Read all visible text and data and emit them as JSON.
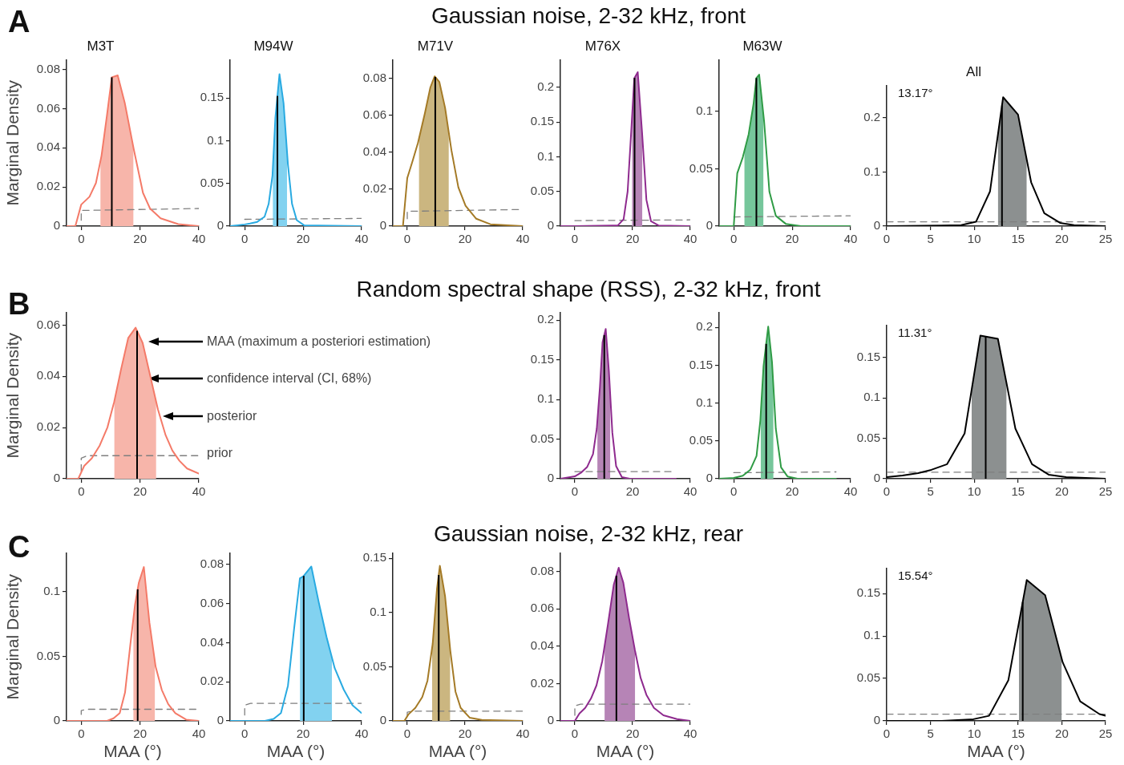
{
  "chart_data": [
    {
      "type": "line",
      "title": "M3T",
      "ylabel": "Marginal Density",
      "annotations": [
        "A",
        "Gaussian noise, 2-32 kHz, front"
      ],
      "xlim": [
        -5,
        40
      ],
      "xticks": [
        0,
        20,
        40
      ],
      "ylim": [
        0,
        0.085
      ],
      "yticks": [
        0,
        0.02,
        0.04,
        0.06,
        0.08
      ],
      "series": [
        {
          "color": "#f47a68",
          "x": [
            -5,
            -2,
            0,
            2.8,
            5,
            6.9,
            8.7,
            10.4,
            12.4,
            14.8,
            17.9,
            21,
            23.4,
            27,
            33,
            40
          ],
          "values": [
            0,
            0,
            0.011,
            0.015,
            0.022,
            0.036,
            0.056,
            0.076,
            0.077,
            0.063,
            0.039,
            0.017,
            0.009,
            0.004,
            0.001,
            0
          ]
        },
        {
          "color": "#7f7f7f",
          "line_style": "dashed",
          "x": [
            0,
            0,
            40
          ],
          "values": [
            0.003,
            0.008,
            0.009
          ]
        },
        {
          "type": "area",
          "color": "#f7b5aa",
          "x": [
            6.5,
            6.9,
            8.7,
            10.4,
            12.4,
            14.8,
            17.8
          ],
          "values": [
            0.033,
            0.036,
            0.056,
            0.076,
            0.077,
            0.063,
            0.04
          ]
        }
      ],
      "ref_lines": [
        {
          "axis": "x",
          "value": 10.4,
          "color": "#000000"
        }
      ]
    },
    {
      "type": "line",
      "title": "M94W",
      "xlim": [
        -5,
        40
      ],
      "xticks": [
        0,
        20,
        40
      ],
      "ylim": [
        0,
        0.195
      ],
      "yticks": [
        0,
        0.05,
        0.1,
        0.15
      ],
      "series": [
        {
          "color": "#29aae1",
          "x": [
            -5,
            0,
            1.8,
            4.3,
            6.8,
            8.2,
            9.5,
            10.5,
            11.9,
            13.3,
            14.8,
            16.2,
            17.8,
            20.3,
            40
          ],
          "values": [
            0,
            0.002,
            0.003,
            0.005,
            0.011,
            0.026,
            0.059,
            0.127,
            0.178,
            0.144,
            0.072,
            0.026,
            0.007,
            0.001,
            0
          ]
        },
        {
          "color": "#7f7f7f",
          "line_style": "dashed",
          "x": [
            0,
            40
          ],
          "values": [
            0.008,
            0.009
          ]
        },
        {
          "type": "area",
          "color": "#82d2f0",
          "x": [
            9.6,
            10.5,
            11.9,
            13.3,
            14.5
          ],
          "values": [
            0.066,
            0.127,
            0.178,
            0.144,
            0.086
          ]
        }
      ],
      "ref_lines": [
        {
          "axis": "x",
          "value": 11.2,
          "color": "#000000"
        }
      ]
    },
    {
      "type": "line",
      "title": "M71V",
      "xlim": [
        -5,
        40
      ],
      "xticks": [
        0,
        20,
        40
      ],
      "ylim": [
        0,
        0.09
      ],
      "yticks": [
        0,
        0.02,
        0.04,
        0.06,
        0.08
      ],
      "series": [
        {
          "color": "#a47a26",
          "x": [
            -5,
            -1.5,
            0,
            1.8,
            3.7,
            6.1,
            8,
            9.5,
            11.1,
            13.1,
            15.3,
            17.7,
            20.2,
            23.9,
            28.8,
            40
          ],
          "values": [
            0,
            0,
            0.026,
            0.035,
            0.045,
            0.061,
            0.075,
            0.081,
            0.078,
            0.064,
            0.041,
            0.021,
            0.011,
            0.004,
            0.001,
            0
          ]
        },
        {
          "color": "#7f7f7f",
          "line_style": "dashed",
          "x": [
            0,
            0,
            40
          ],
          "values": [
            0.004,
            0.008,
            0.009
          ]
        },
        {
          "type": "area",
          "color": "#cbb680",
          "x": [
            4,
            6.1,
            8,
            9.5,
            11.1,
            13.1,
            14.4
          ],
          "values": [
            0.047,
            0.061,
            0.075,
            0.081,
            0.078,
            0.064,
            0.05
          ]
        }
      ],
      "ref_lines": [
        {
          "axis": "x",
          "value": 9.7,
          "color": "#000000"
        }
      ]
    },
    {
      "type": "line",
      "title": "M76X",
      "xlim": [
        -5,
        40
      ],
      "xticks": [
        0,
        20,
        40
      ],
      "ylim": [
        0,
        0.24
      ],
      "yticks": [
        0,
        0.05,
        0.1,
        0.15,
        0.2
      ],
      "series": [
        {
          "color": "#8e2a8e",
          "x": [
            -5,
            0,
            14.9,
            16.9,
            18.3,
            19.6,
            20.6,
            21.8,
            23.3,
            24.8,
            26.4,
            29,
            40
          ],
          "values": [
            0,
            0,
            0.001,
            0.01,
            0.05,
            0.141,
            0.213,
            0.222,
            0.135,
            0.038,
            0.007,
            0.001,
            0
          ]
        },
        {
          "color": "#7f7f7f",
          "line_style": "dashed",
          "x": [
            0,
            40
          ],
          "values": [
            0.008,
            0.009
          ]
        },
        {
          "type": "area",
          "color": "#b684b6",
          "x": [
            19.8,
            20.6,
            21.8,
            23.3,
            23.4
          ],
          "values": [
            0.155,
            0.213,
            0.222,
            0.135,
            0.129
          ]
        }
      ],
      "ref_lines": [
        {
          "axis": "x",
          "value": 20.7,
          "color": "#000000"
        }
      ]
    },
    {
      "type": "line",
      "title": "M63W",
      "xlim": [
        -5,
        40
      ],
      "xticks": [
        0,
        20,
        40
      ],
      "ylim": [
        0,
        0.145
      ],
      "yticks": [
        0,
        0.05,
        0.1
      ],
      "series": [
        {
          "color": "#2f9b45",
          "x": [
            -5,
            0,
            1.2,
            3.1,
            5.1,
            6.8,
            7.75,
            8.7,
            10.4,
            12.2,
            14.4,
            17.8,
            23,
            40
          ],
          "values": [
            0,
            0,
            0.046,
            0.06,
            0.08,
            0.107,
            0.129,
            0.132,
            0.091,
            0.03,
            0.009,
            0.002,
            0,
            0
          ]
        },
        {
          "color": "#7f7f7f",
          "line_style": "dashed",
          "x": [
            0,
            40
          ],
          "values": [
            0.008,
            0.009
          ]
        },
        {
          "type": "area",
          "color": "#76c69b",
          "x": [
            3.6,
            5.1,
            6.8,
            7.75,
            8.7,
            10.2
          ],
          "values": [
            0.065,
            0.08,
            0.107,
            0.129,
            0.132,
            0.095
          ]
        }
      ],
      "ref_lines": [
        {
          "axis": "x",
          "value": 7.75,
          "color": "#000000"
        }
      ]
    },
    {
      "type": "line",
      "title": "All",
      "annotations": [
        "13.17°"
      ],
      "xlim": [
        0,
        25
      ],
      "xticks": [
        0,
        5,
        10,
        15,
        20,
        25
      ],
      "ylim": [
        0,
        0.26
      ],
      "yticks": [
        0,
        0.1,
        0.2
      ],
      "series": [
        {
          "color": "#000000",
          "x": [
            0,
            6.2,
            8.5,
            10.2,
            11.8,
            13.3,
            15,
            16.5,
            18,
            19.8,
            21.4,
            25
          ],
          "values": [
            0,
            0.001,
            0.002,
            0.008,
            0.064,
            0.238,
            0.206,
            0.081,
            0.024,
            0.006,
            0.002,
            0
          ]
        },
        {
          "color": "#7f7f7f",
          "line_style": "dashed",
          "x": [
            0,
            25
          ],
          "values": [
            0.008,
            0.008
          ]
        },
        {
          "type": "area",
          "color": "#8c9090",
          "x": [
            12.7,
            13.3,
            15,
            16
          ],
          "values": [
            0.168,
            0.238,
            0.206,
            0.123
          ]
        }
      ],
      "ref_lines": [
        {
          "axis": "x",
          "value": 13.17,
          "color": "#000000"
        }
      ]
    },
    {
      "type": "line",
      "ylabel": "Marginal Density",
      "annotations": [
        "B",
        "Random spectral shape (RSS), 2-32 kHz, front",
        "MAA (maximum a posteriori estimation)",
        "confidence interval (CI, 68%)",
        "posterior",
        "prior"
      ],
      "xlim": [
        -5,
        40
      ],
      "xticks": [
        0,
        20,
        40
      ],
      "ylim": [
        0,
        0.065
      ],
      "yticks": [
        0,
        0.02,
        0.04,
        0.06
      ],
      "series": [
        {
          "color": "#f47a68",
          "x": [
            -5,
            -1,
            1,
            3.6,
            6.3,
            8.9,
            11.2,
            13.6,
            16,
            18.5,
            20.9,
            23.5,
            26.1,
            28.7,
            31,
            33.4,
            36,
            40
          ],
          "values": [
            0,
            0,
            0.005,
            0.008,
            0.013,
            0.02,
            0.03,
            0.043,
            0.055,
            0.059,
            0.053,
            0.04,
            0.027,
            0.017,
            0.011,
            0.007,
            0.004,
            0.002
          ]
        },
        {
          "color": "#7f7f7f",
          "line_style": "dashed",
          "x": [
            0,
            0,
            2,
            40
          ],
          "values": [
            0.003,
            0.008,
            0.009,
            0.009
          ]
        },
        {
          "type": "area",
          "color": "#f7b5aa",
          "x": [
            11.2,
            13.6,
            16,
            18.5,
            20.9,
            23.5,
            25.5
          ],
          "values": [
            0.03,
            0.043,
            0.055,
            0.059,
            0.053,
            0.04,
            0.03
          ]
        }
      ],
      "ref_lines": [
        {
          "axis": "x",
          "value": 19.0,
          "color": "#000000"
        }
      ]
    },
    {
      "type": "line",
      "xlim": [
        -5,
        40
      ],
      "xticks": [
        0,
        20,
        40
      ],
      "ylim": [
        0,
        0.21
      ],
      "yticks": [
        0,
        0.05,
        0.1,
        0.15,
        0.2
      ],
      "series": [
        {
          "color": "#8e2a8e",
          "x": [
            -5,
            0,
            2.3,
            4.3,
            6.3,
            7.6,
            8.7,
            9.6,
            10.7,
            11.8,
            13,
            14.3,
            16.3,
            19,
            35
          ],
          "values": [
            0,
            0.003,
            0.008,
            0.015,
            0.031,
            0.063,
            0.116,
            0.172,
            0.189,
            0.136,
            0.058,
            0.016,
            0.002,
            0,
            0
          ]
        },
        {
          "color": "#7f7f7f",
          "line_style": "dashed",
          "x": [
            0,
            34
          ],
          "values": [
            0.009,
            0.009
          ]
        },
        {
          "type": "area",
          "color": "#b684b6",
          "x": [
            7.8,
            8.7,
            9.6,
            10.7,
            11.8,
            12.3
          ],
          "values": [
            0.072,
            0.116,
            0.172,
            0.189,
            0.136,
            0.104
          ]
        }
      ],
      "ref_lines": [
        {
          "axis": "x",
          "value": 10.2,
          "color": "#000000"
        }
      ]
    },
    {
      "type": "line",
      "xlim": [
        -5,
        40
      ],
      "xticks": [
        0,
        20,
        40
      ],
      "ylim": [
        0,
        0.22
      ],
      "yticks": [
        0,
        0.05,
        0.1,
        0.15,
        0.2
      ],
      "series": [
        {
          "color": "#2f9b45",
          "x": [
            -5,
            0,
            3.1,
            5.7,
            7.8,
            9.1,
            10.2,
            11.8,
            13.1,
            14.4,
            16.2,
            18.4,
            21.8,
            35
          ],
          "values": [
            0,
            0.001,
            0.004,
            0.012,
            0.03,
            0.077,
            0.149,
            0.201,
            0.154,
            0.066,
            0.015,
            0.003,
            0,
            0
          ]
        },
        {
          "color": "#7f7f7f",
          "line_style": "dashed",
          "x": [
            0,
            35
          ],
          "values": [
            0.008,
            0.009
          ]
        },
        {
          "type": "area",
          "color": "#76c69b",
          "x": [
            9.2,
            10.2,
            11.8,
            13.1,
            13.6
          ],
          "values": [
            0.084,
            0.149,
            0.201,
            0.154,
            0.12
          ]
        }
      ],
      "ref_lines": [
        {
          "axis": "x",
          "value": 11.1,
          "color": "#000000"
        }
      ]
    },
    {
      "type": "line",
      "annotations": [
        "11.31°"
      ],
      "xlim": [
        0,
        25
      ],
      "xticks": [
        0,
        5,
        10,
        15,
        20,
        25
      ],
      "ylim": [
        0,
        0.19
      ],
      "yticks": [
        0,
        0.05,
        0.1,
        0.15
      ],
      "series": [
        {
          "color": "#000000",
          "x": [
            0,
            1.8,
            3.6,
            5.1,
            6.9,
            8.9,
            10.7,
            12.7,
            14.7,
            16.6,
            18.5,
            20.5,
            25
          ],
          "values": [
            0.002,
            0.004,
            0.007,
            0.011,
            0.018,
            0.056,
            0.177,
            0.173,
            0.062,
            0.018,
            0.005,
            0.002,
            0
          ]
        },
        {
          "color": "#7f7f7f",
          "line_style": "dashed",
          "x": [
            0,
            25
          ],
          "values": [
            0.008,
            0.008
          ]
        },
        {
          "type": "area",
          "color": "#8c9090",
          "x": [
            9.7,
            10.7,
            12.7,
            13.7
          ],
          "values": [
            0.109,
            0.177,
            0.173,
            0.117
          ]
        }
      ],
      "ref_lines": [
        {
          "axis": "x",
          "value": 11.31,
          "color": "#000000"
        }
      ]
    },
    {
      "type": "line",
      "ylabel": "Marginal Density",
      "xlabel": "MAA (°)",
      "annotations": [
        "C",
        "Gaussian noise, 2-32 kHz, rear"
      ],
      "xlim": [
        -5,
        40
      ],
      "xticks": [
        0,
        20,
        40
      ],
      "ylim": [
        0,
        0.13
      ],
      "yticks": [
        0,
        0.05,
        0.1
      ],
      "series": [
        {
          "color": "#f47a68",
          "x": [
            -5,
            0,
            8.8,
            11,
            13.1,
            14.9,
            16.7,
            18.3,
            19.6,
            21.3,
            23.2,
            25.3,
            27.4,
            29.6,
            32,
            35.7,
            40
          ],
          "values": [
            0,
            0,
            0,
            0.002,
            0.006,
            0.022,
            0.059,
            0.09,
            0.107,
            0.119,
            0.076,
            0.042,
            0.024,
            0.013,
            0.006,
            0.001,
            0
          ]
        },
        {
          "color": "#7f7f7f",
          "line_style": "dashed",
          "x": [
            0,
            0,
            2,
            40
          ],
          "values": [
            0.005,
            0.008,
            0.009,
            0.009
          ]
        },
        {
          "type": "area",
          "color": "#f7b5aa",
          "x": [
            17.7,
            18.3,
            19.6,
            21.3,
            23.2,
            25.1
          ],
          "values": [
            0.078,
            0.09,
            0.107,
            0.119,
            0.076,
            0.045
          ]
        }
      ],
      "ref_lines": [
        {
          "axis": "x",
          "value": 19.2,
          "color": "#000000"
        }
      ]
    },
    {
      "type": "line",
      "xlabel": "MAA (°)",
      "xlim": [
        -5,
        40
      ],
      "xticks": [
        0,
        20,
        40
      ],
      "ylim": [
        0,
        0.086
      ],
      "yticks": [
        0,
        0.02,
        0.04,
        0.06,
        0.08
      ],
      "series": [
        {
          "color": "#29aae1",
          "x": [
            -5,
            0,
            6.9,
            9.9,
            12.4,
            14.8,
            16.9,
            18.9,
            20.1,
            22.8,
            25.3,
            28,
            30.8,
            33.9,
            36.9,
            40
          ],
          "values": [
            0,
            0,
            0,
            0.001,
            0.004,
            0.018,
            0.047,
            0.073,
            0.074,
            0.079,
            0.061,
            0.043,
            0.027,
            0.016,
            0.008,
            0.004
          ]
        },
        {
          "color": "#7f7f7f",
          "line_style": "dashed",
          "x": [
            0,
            0,
            2,
            40
          ],
          "values": [
            0.003,
            0.008,
            0.009,
            0.009
          ]
        },
        {
          "type": "area",
          "color": "#82d2f0",
          "x": [
            18.9,
            20.1,
            22.8,
            25.3,
            28,
            29.9
          ],
          "values": [
            0.073,
            0.074,
            0.079,
            0.061,
            0.043,
            0.032
          ]
        }
      ],
      "ref_lines": [
        {
          "axis": "x",
          "value": 20.2,
          "color": "#000000"
        }
      ]
    },
    {
      "type": "line",
      "xlabel": "MAA (°)",
      "xlim": [
        -5,
        40
      ],
      "xticks": [
        0,
        20,
        40
      ],
      "ylim": [
        0,
        0.155
      ],
      "yticks": [
        0,
        0.05,
        0.1,
        0.15
      ],
      "series": [
        {
          "color": "#a47a26",
          "x": [
            -5,
            -1,
            0.4,
            2.8,
            5.2,
            7,
            8.8,
            10.3,
            11.3,
            13.1,
            14.9,
            16.7,
            18.5,
            21.6,
            25.8,
            40
          ],
          "values": [
            0,
            0,
            0.006,
            0.012,
            0.022,
            0.037,
            0.071,
            0.122,
            0.143,
            0.115,
            0.065,
            0.027,
            0.012,
            0.003,
            0.001,
            0
          ]
        },
        {
          "color": "#7f7f7f",
          "line_style": "dashed",
          "x": [
            0,
            0,
            2,
            40
          ],
          "values": [
            0.005,
            0.008,
            0.009,
            0.009
          ]
        },
        {
          "type": "area",
          "color": "#cbb680",
          "x": [
            8.6,
            8.8,
            10.3,
            11.3,
            13.1,
            14.9
          ],
          "values": [
            0.067,
            0.071,
            0.122,
            0.143,
            0.115,
            0.065
          ]
        }
      ],
      "ref_lines": [
        {
          "axis": "x",
          "value": 10.9,
          "color": "#000000"
        }
      ]
    },
    {
      "type": "line",
      "xlabel": "MAA (°)",
      "xlim": [
        -5,
        40
      ],
      "xticks": [
        0,
        20,
        40
      ],
      "ylim": [
        0,
        0.09
      ],
      "yticks": [
        0,
        0.02,
        0.04,
        0.06,
        0.08
      ],
      "series": [
        {
          "color": "#8e2a8e",
          "x": [
            -5,
            0,
            1.6,
            3.6,
            5.6,
            7.5,
            9.5,
            11.5,
            13.5,
            15.2,
            16.8,
            18.8,
            20.8,
            22.8,
            24.8,
            27.4,
            30.7,
            35.4,
            40
          ],
          "values": [
            0,
            0,
            0.004,
            0.007,
            0.012,
            0.019,
            0.032,
            0.052,
            0.073,
            0.082,
            0.074,
            0.055,
            0.038,
            0.023,
            0.014,
            0.007,
            0.003,
            0.001,
            0
          ]
        },
        {
          "color": "#7f7f7f",
          "line_style": "dashed",
          "x": [
            0,
            0,
            2,
            40
          ],
          "values": [
            0.003,
            0.008,
            0.009,
            0.009
          ]
        },
        {
          "type": "area",
          "color": "#b684b6",
          "x": [
            10.3,
            11.5,
            13.5,
            15.2,
            16.8,
            18.8,
            20.8,
            20.9
          ],
          "values": [
            0.04,
            0.052,
            0.073,
            0.082,
            0.074,
            0.055,
            0.038,
            0.037
          ]
        }
      ],
      "ref_lines": [
        {
          "axis": "x",
          "value": 14.4,
          "color": "#000000"
        }
      ]
    },
    {
      "type": "line",
      "xlabel": "MAA (°)",
      "annotations": [
        "15.54°"
      ],
      "xlim": [
        0,
        25
      ],
      "xticks": [
        0,
        5,
        10,
        15,
        20,
        25
      ],
      "ylim": [
        0,
        0.18
      ],
      "yticks": [
        0,
        0.05,
        0.1,
        0.15
      ],
      "series": [
        {
          "color": "#000000",
          "x": [
            0,
            6.3,
            9.9,
            11.7,
            13.9,
            16,
            18.1,
            20.1,
            22.1,
            24.3,
            25
          ],
          "values": [
            0,
            0,
            0.002,
            0.006,
            0.048,
            0.166,
            0.148,
            0.069,
            0.023,
            0.008,
            0.006
          ]
        },
        {
          "color": "#7f7f7f",
          "line_style": "dashed",
          "x": [
            0,
            25
          ],
          "values": [
            0.008,
            0.008
          ]
        },
        {
          "type": "area",
          "color": "#8c9090",
          "x": [
            15.1,
            16,
            18.1,
            20
          ],
          "values": [
            0.115,
            0.166,
            0.148,
            0.073
          ]
        }
      ],
      "ref_lines": [
        {
          "axis": "x",
          "value": 15.54,
          "color": "#000000"
        }
      ]
    }
  ]
}
